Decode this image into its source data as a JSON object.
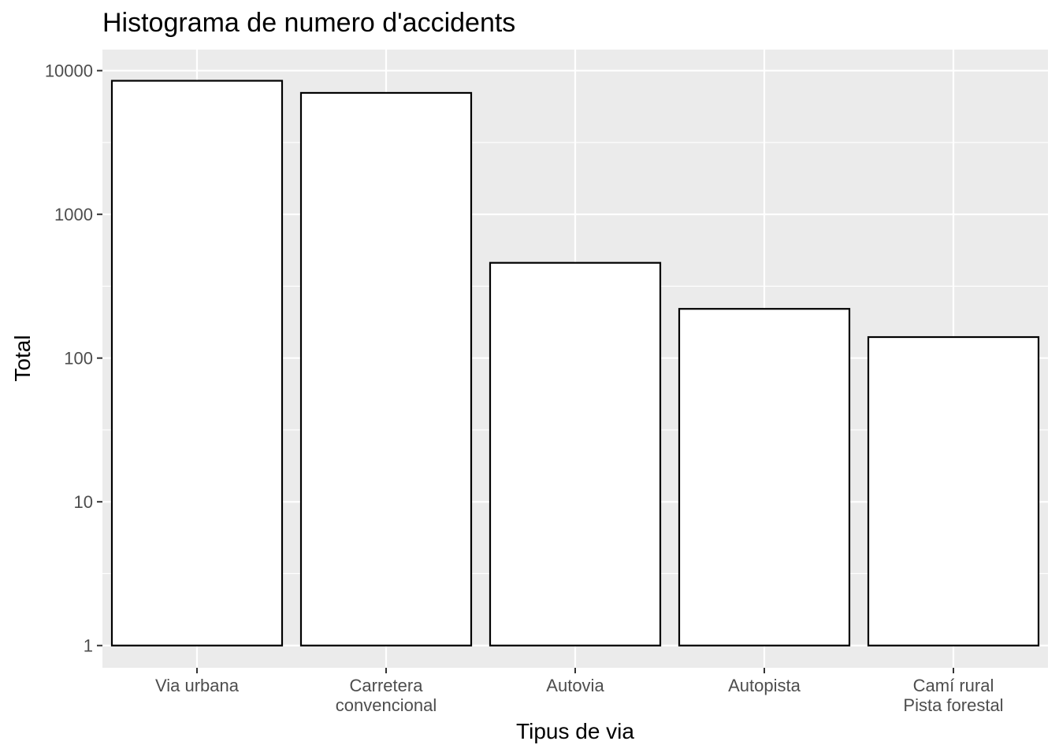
{
  "chart_data": {
    "type": "bar",
    "title": "Histograma de numero d'accidents",
    "xlabel": "Tipus de via",
    "ylabel": "Total",
    "categories": [
      [
        "Via urbana"
      ],
      [
        "Carretera",
        "convencional"
      ],
      [
        "Autovia"
      ],
      [
        "Autopista"
      ],
      [
        "Camí rural",
        "Pista forestal"
      ]
    ],
    "values": [
      8500,
      7000,
      460,
      220,
      140
    ],
    "y_scale": "log10",
    "ylim": [
      0.7,
      14000
    ],
    "y_ticks": [
      1,
      10,
      100,
      1000,
      10000
    ],
    "y_tick_labels": [
      "1",
      "10",
      "100",
      "1000",
      "10000"
    ],
    "grid": true,
    "legend": "none",
    "colors": {
      "panel_background": "#ebebeb",
      "grid": "#ffffff",
      "bar_fill": "#ffffff",
      "bar_outline": "#000000",
      "tick_text": "#4d4d4d",
      "tick_mark": "#333333"
    }
  }
}
